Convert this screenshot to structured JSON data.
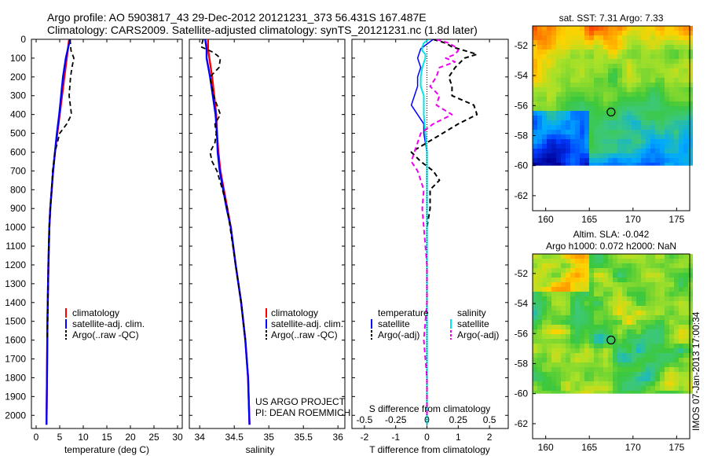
{
  "header": {
    "line1": "Argo profile: AO 5903817_43 29-Dec-2012 20121231_373 56.431S 167.487E",
    "line2": "Climatology: CARS2009. Satellite-adjusted climatology: synTS_20121231.nc (1.8d later)"
  },
  "colors": {
    "climatology": "#ff0000",
    "satellite": "#0000ff",
    "argo": "#000000",
    "satellite_salinity": "#00e5ee",
    "argo_salinity": "#ee00ee"
  },
  "chart_data": [
    {
      "id": "temperature",
      "type": "line",
      "xlabel": "temperature (deg C)",
      "ylabel": "",
      "xlim": [
        -1,
        31
      ],
      "ylim": [
        2070,
        0
      ],
      "xticks": [
        "0",
        "5",
        "10",
        "15",
        "20",
        "25",
        "30"
      ],
      "xtick_values": [
        0,
        5,
        10,
        15,
        20,
        25,
        30
      ],
      "yticks": [
        "0",
        "100",
        "200",
        "300",
        "400",
        "500",
        "600",
        "700",
        "800",
        "900",
        "1000",
        "1100",
        "1200",
        "1300",
        "1400",
        "1500",
        "1600",
        "1700",
        "1800",
        "1900",
        "2000"
      ],
      "ytick_values": [
        0,
        100,
        200,
        300,
        400,
        500,
        600,
        700,
        800,
        900,
        1000,
        1100,
        1200,
        1300,
        1400,
        1500,
        1600,
        1700,
        1800,
        1900,
        2000
      ],
      "legend": [
        "climatology",
        "satellite-adj. clim.",
        "Argo(..raw -QC)"
      ],
      "legend_position": "lower-right",
      "series": [
        {
          "name": "climatology",
          "style": "solid",
          "depth": [
            0,
            100,
            200,
            300,
            400,
            500,
            600,
            700,
            800,
            900,
            1000,
            1200,
            1500,
            1800,
            2050
          ],
          "values": [
            7.0,
            6.5,
            6.0,
            5.5,
            5.0,
            4.5,
            4.0,
            3.6,
            3.3,
            3.0,
            2.8,
            2.6,
            2.4,
            2.3,
            2.2
          ]
        },
        {
          "name": "satellite-adj. clim.",
          "style": "solid",
          "depth": [
            0,
            100,
            200,
            300,
            400,
            500,
            600,
            700,
            800,
            900,
            1000,
            1200,
            1500,
            1800,
            2050
          ],
          "values": [
            7.2,
            6.3,
            5.7,
            5.3,
            4.9,
            4.4,
            4.0,
            3.6,
            3.3,
            3.0,
            2.8,
            2.6,
            2.4,
            2.3,
            2.2
          ]
        },
        {
          "name": "Argo(..raw -QC)",
          "style": "dashed",
          "depth": [
            0,
            60,
            100,
            150,
            200,
            300,
            400,
            450,
            500,
            600,
            700,
            800,
            900,
            1000,
            1100,
            1200,
            1400,
            1600
          ],
          "values": [
            7.2,
            7.4,
            8.0,
            7.6,
            7.3,
            7.0,
            7.5,
            6.5,
            5.0,
            4.0,
            3.5,
            3.3,
            3.0,
            2.8,
            2.7,
            2.6,
            2.5,
            2.4
          ]
        }
      ]
    },
    {
      "id": "salinity",
      "type": "line",
      "xlabel": "salinity",
      "xlim": [
        33.85,
        36.1
      ],
      "ylim": [
        2070,
        0
      ],
      "xticks": [
        "34",
        "34.5",
        "35",
        "35.5",
        "36"
      ],
      "xtick_values": [
        34,
        34.5,
        35,
        35.5,
        36
      ],
      "legend": [
        "climatology",
        "satellite-adj. clim.",
        "Argo(..raw -QC)"
      ],
      "legend_position": "lower-right",
      "annotation": [
        "US ARGO PROJECT",
        "PI: DEAN ROEMMICH"
      ],
      "series": [
        {
          "name": "climatology",
          "style": "solid",
          "depth": [
            0,
            50,
            100,
            200,
            300,
            400,
            500,
            600,
            700,
            800,
            900,
            1000,
            1200,
            1400,
            1600,
            1800,
            2050
          ],
          "values": [
            34.12,
            34.12,
            34.14,
            34.18,
            34.21,
            34.24,
            34.25,
            34.27,
            34.3,
            34.35,
            34.4,
            34.45,
            34.52,
            34.6,
            34.66,
            34.7,
            34.72
          ]
        },
        {
          "name": "satellite-adj. clim.",
          "style": "solid",
          "depth": [
            0,
            50,
            100,
            200,
            300,
            400,
            500,
            600,
            700,
            800,
            900,
            1000,
            1200,
            1400,
            1600,
            1800,
            2050
          ],
          "values": [
            34.08,
            34.1,
            34.1,
            34.15,
            34.19,
            34.23,
            34.25,
            34.26,
            34.29,
            34.34,
            34.39,
            34.45,
            34.52,
            34.6,
            34.66,
            34.7,
            34.72
          ]
        },
        {
          "name": "Argo(..raw -QC)",
          "style": "dashed",
          "depth": [
            0,
            40,
            70,
            100,
            150,
            200,
            300,
            350,
            400,
            450,
            500,
            550,
            600,
            650,
            700,
            800,
            900,
            1000,
            1100,
            1200,
            1400,
            1600
          ],
          "values": [
            34.05,
            34.02,
            34.2,
            34.3,
            34.28,
            34.15,
            34.2,
            34.25,
            34.3,
            34.22,
            34.24,
            34.22,
            34.15,
            34.18,
            34.25,
            34.33,
            34.4,
            34.44,
            34.48,
            34.52,
            34.6,
            34.66
          ]
        }
      ]
    },
    {
      "id": "difference",
      "type": "line",
      "xlabel": "T difference from climatology",
      "xlabel2": "S difference from climatology",
      "xlim": [
        -2.4,
        2.6
      ],
      "ylim": [
        2070,
        0
      ],
      "xticks": [
        "-2",
        "-1",
        "0",
        "1",
        "2"
      ],
      "xtick_values": [
        -2,
        -1,
        0,
        1,
        2
      ],
      "xticks2": [
        "-0.5",
        "-0.25",
        "0",
        "0.25",
        "0.5"
      ],
      "xtick2_values": [
        -2,
        -1,
        0,
        1,
        2
      ],
      "legend_titles": [
        "temperature",
        "salinity"
      ],
      "legend": [
        "satellite",
        "Argo(-adj)",
        "satellite",
        "Argo(-adj)"
      ],
      "series": [
        {
          "name": "temperature satellite",
          "style": "solid",
          "depth": [
            0,
            50,
            100,
            150,
            200,
            250,
            300,
            350,
            400,
            450,
            500,
            600,
            700,
            800,
            1000,
            1200,
            1400,
            1600,
            1800,
            2050
          ],
          "values": [
            0.2,
            -0.2,
            -0.3,
            -0.2,
            -0.3,
            -0.3,
            -0.4,
            -0.5,
            -0.3,
            -0.1,
            -0.1,
            0.0,
            0.0,
            0.0,
            0.0,
            0.0,
            0.0,
            0.0,
            0.0,
            0.0
          ]
        },
        {
          "name": "temperature Argo(-adj)",
          "style": "dashed",
          "depth": [
            0,
            20,
            40,
            60,
            80,
            100,
            150,
            200,
            250,
            300,
            350,
            400,
            450,
            500,
            550,
            600,
            650,
            700,
            750,
            800,
            900,
            1000,
            1100,
            1200
          ],
          "values": [
            0.2,
            0.6,
            0.8,
            1.2,
            1.6,
            1.2,
            0.9,
            0.7,
            0.8,
            0.8,
            1.5,
            1.6,
            1.0,
            0.5,
            0.0,
            -0.5,
            -0.2,
            0.2,
            0.4,
            0.1,
            0.1,
            0.0,
            0.0,
            0.0
          ]
        },
        {
          "name": "salinity satellite",
          "style": "solid",
          "depth": [
            0,
            20,
            40,
            60,
            80,
            100,
            150,
            200,
            250,
            300,
            400,
            500,
            600,
            800,
            1000,
            1200,
            1500,
            1800,
            2050
          ],
          "values": [
            0.05,
            -0.1,
            -0.15,
            -0.15,
            -0.05,
            -0.05,
            -0.15,
            -0.2,
            -0.2,
            -0.1,
            -0.1,
            -0.05,
            0.0,
            0.0,
            0.0,
            0.0,
            0.0,
            0.0,
            0.0
          ]
        },
        {
          "name": "salinity Argo(-adj)",
          "style": "dashed",
          "depth": [
            0,
            20,
            40,
            60,
            80,
            100,
            120,
            150,
            200,
            250,
            300,
            350,
            400,
            450,
            500,
            550,
            600,
            650,
            700,
            800,
            900,
            1000,
            1200,
            1400,
            1600,
            1800,
            2000
          ],
          "values": [
            0.3,
            0.7,
            0.9,
            1.0,
            0.9,
            0.6,
            0.9,
            0.4,
            0.3,
            0.1,
            0.4,
            0.3,
            0.8,
            0.2,
            -0.2,
            -0.3,
            -0.4,
            -0.5,
            -0.3,
            -0.1,
            -0.15,
            -0.1,
            0.0,
            0.0,
            -0.1,
            0.0,
            0.0
          ]
        }
      ]
    },
    {
      "id": "sst_map",
      "type": "heatmap",
      "title": "sat. SST: 7.31 Argo: 7.33",
      "xticks": [
        "160",
        "165",
        "170",
        "175"
      ],
      "xtick_values": [
        160,
        165,
        170,
        175
      ],
      "yticks": [
        "-52",
        "-54",
        "-56",
        "-58",
        "-60",
        "-62"
      ],
      "ytick_values": [
        -52,
        -54,
        -56,
        -58,
        -60,
        -62
      ],
      "xlim": [
        158.5,
        176.5
      ],
      "ylim": [
        -63,
        -50.7
      ],
      "data_ylim": [
        -60,
        -50.7
      ],
      "argo_position": [
        167.487,
        -56.431
      ]
    },
    {
      "id": "sla_map",
      "type": "heatmap",
      "title": "Altim. SLA: -0.042",
      "subtitle": "Argo h1000: 0.072 h2000: NaN",
      "xticks": [
        "160",
        "165",
        "170",
        "175"
      ],
      "xtick_values": [
        160,
        165,
        170,
        175
      ],
      "yticks": [
        "-52",
        "-54",
        "-56",
        "-58",
        "-60",
        "-62"
      ],
      "ytick_values": [
        -52,
        -54,
        -56,
        -58,
        -60,
        -62
      ],
      "xlim": [
        158.5,
        176.5
      ],
      "ylim": [
        -63,
        -50.7
      ],
      "data_ylim": [
        -60,
        -50.7
      ],
      "argo_position": [
        167.487,
        -56.431
      ]
    }
  ],
  "watermark": "IMOS 07-Jan-2013 17:00:34"
}
